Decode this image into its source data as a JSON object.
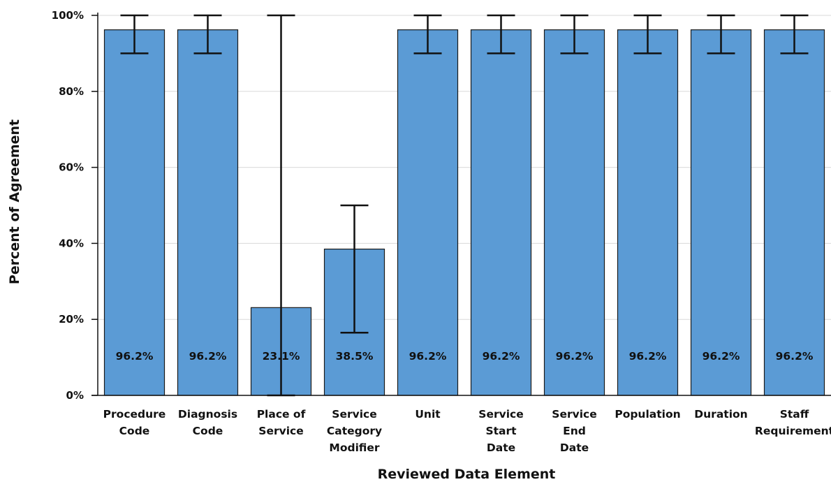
{
  "chart_data": {
    "type": "bar",
    "xlabel": "Reviewed Data Element",
    "ylabel": "Percent of Agreement",
    "ylim": [
      0,
      100
    ],
    "y_ticks": [
      "0%",
      "20%",
      "40%",
      "60%",
      "80%",
      "100%"
    ],
    "grid": "horizontal",
    "bar_color": "#5b9bd5",
    "categories": [
      [
        "Procedure",
        "Code"
      ],
      [
        "Diagnosis",
        "Code"
      ],
      [
        "Place of",
        "Service"
      ],
      [
        "Service",
        "Category",
        "Modifier"
      ],
      [
        "Unit"
      ],
      [
        "Service",
        "Start",
        "Date"
      ],
      [
        "Service",
        "End",
        "Date"
      ],
      [
        "Population"
      ],
      [
        "Duration"
      ],
      [
        "Staff",
        "Requirement"
      ]
    ],
    "values": [
      96.2,
      96.2,
      23.1,
      38.5,
      96.2,
      96.2,
      96.2,
      96.2,
      96.2,
      96.2
    ],
    "data_labels": [
      "96.2%",
      "96.2%",
      "23.1%",
      "38.5%",
      "96.2%",
      "96.2%",
      "96.2%",
      "96.2%",
      "96.2%",
      "96.2%"
    ],
    "error_bars": [
      [
        90,
        100
      ],
      [
        90,
        100
      ],
      [
        0,
        100
      ],
      [
        16.5,
        50
      ],
      [
        90,
        100
      ],
      [
        90,
        100
      ],
      [
        90,
        100
      ],
      [
        90,
        100
      ],
      [
        90,
        100
      ],
      [
        90,
        100
      ]
    ]
  }
}
